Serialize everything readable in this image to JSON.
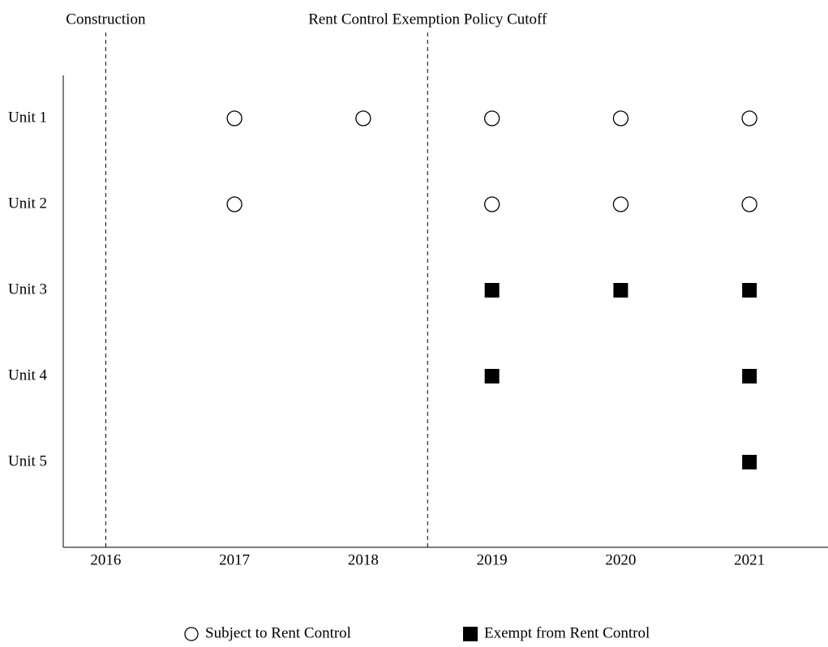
{
  "chart_data": {
    "type": "scatter",
    "categories": [
      "Unit 1",
      "Unit 2",
      "Unit 3",
      "Unit 4",
      "Unit 5"
    ],
    "xlim": [
      2015.67,
      2021.61
    ],
    "xticks": [
      2016,
      2017,
      2018,
      2019,
      2020,
      2021
    ],
    "annotations": [
      {
        "text": "Construction",
        "x": 2016
      },
      {
        "text": "Rent Control Exemption Policy Cutoff",
        "x": 2018.5
      }
    ],
    "series": [
      {
        "name": "Subject to Rent Control",
        "color": "#000000",
        "marker": "open-circle",
        "x": [
          2017,
          2018,
          2019,
          2020,
          2021,
          2017,
          2019,
          2020,
          2021
        ],
        "y": [
          "Unit 1",
          "Unit 1",
          "Unit 1",
          "Unit 1",
          "Unit 1",
          "Unit 2",
          "Unit 2",
          "Unit 2",
          "Unit 2"
        ]
      },
      {
        "name": "Exempt from Rent Control",
        "color": "#000000",
        "marker": "filled-square",
        "x": [
          2019,
          2020,
          2021,
          2019,
          2021,
          2021
        ],
        "y": [
          "Unit 3",
          "Unit 3",
          "Unit 3",
          "Unit 4",
          "Unit 4",
          "Unit 5"
        ]
      }
    ],
    "legend": "bottom"
  }
}
